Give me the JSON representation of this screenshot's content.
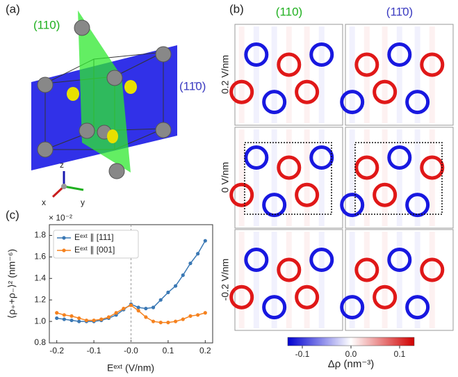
{
  "panel_a": {
    "label": "(a)",
    "plane_110": "(110)",
    "plane_1-10": "(11̄0)",
    "axis_z": "z",
    "axis_x": "x",
    "axis_y": "y"
  },
  "panel_b": {
    "label": "(b)",
    "columns": [
      "(110)",
      "(11̄0)"
    ],
    "rows": [
      "0.2 V/nm",
      "0 V/nm",
      "-0.2 V/nm"
    ],
    "colorbar": {
      "lim": [
        -0.13,
        0.13
      ],
      "ticks": [
        -0.1,
        {
          "value": 0,
          "label": "0.0"
        },
        0.1
      ],
      "label": "Δρ (nm⁻³)"
    }
  },
  "panel_c": {
    "label": "(c)"
  },
  "chart_data": {
    "type": "line",
    "scale_note": "× 10⁻²",
    "x_label": "Eᵉˣᵗ (V/nm)",
    "y_label": "⟨ρ₊+ρ₋⟩² (nm⁻⁶)",
    "x": [
      -0.2,
      -0.18,
      -0.16,
      -0.14,
      -0.12,
      -0.1,
      -0.08,
      -0.06,
      -0.04,
      -0.02,
      0,
      0.02,
      0.04,
      0.06,
      0.08,
      0.1,
      0.12,
      0.14,
      0.16,
      0.18,
      0.2
    ],
    "series": [
      {
        "name": "Eᵉˣᵗ ∥ [111]",
        "color": "#3a78b4",
        "values": [
          1.03,
          1.02,
          1.01,
          1.0,
          1.0,
          1.0,
          1.01,
          1.03,
          1.06,
          1.11,
          1.16,
          1.13,
          1.12,
          1.13,
          1.2,
          1.27,
          1.33,
          1.43,
          1.54,
          1.63,
          1.75
        ]
      },
      {
        "name": "Eᵉˣᵗ ∥ [001]",
        "color": "#f5821f",
        "values": [
          1.08,
          1.06,
          1.05,
          1.03,
          1.01,
          1.01,
          1.02,
          1.04,
          1.08,
          1.12,
          1.15,
          1.1,
          1.04,
          1.0,
          0.99,
          0.99,
          1.0,
          1.02,
          1.05,
          1.06,
          1.08
        ]
      }
    ],
    "xlim": [
      -0.22,
      0.22
    ],
    "ylim": [
      0.8,
      1.9
    ],
    "xticks": [
      -0.2,
      -0.1,
      {
        "value": 0,
        "label": "-0.0"
      },
      0.1,
      0.2
    ],
    "yticks": [
      0.8,
      {
        "value": 1,
        "label": "1.0"
      },
      1.2,
      1.4,
      1.6,
      1.8
    ],
    "legend": "upper-left"
  }
}
